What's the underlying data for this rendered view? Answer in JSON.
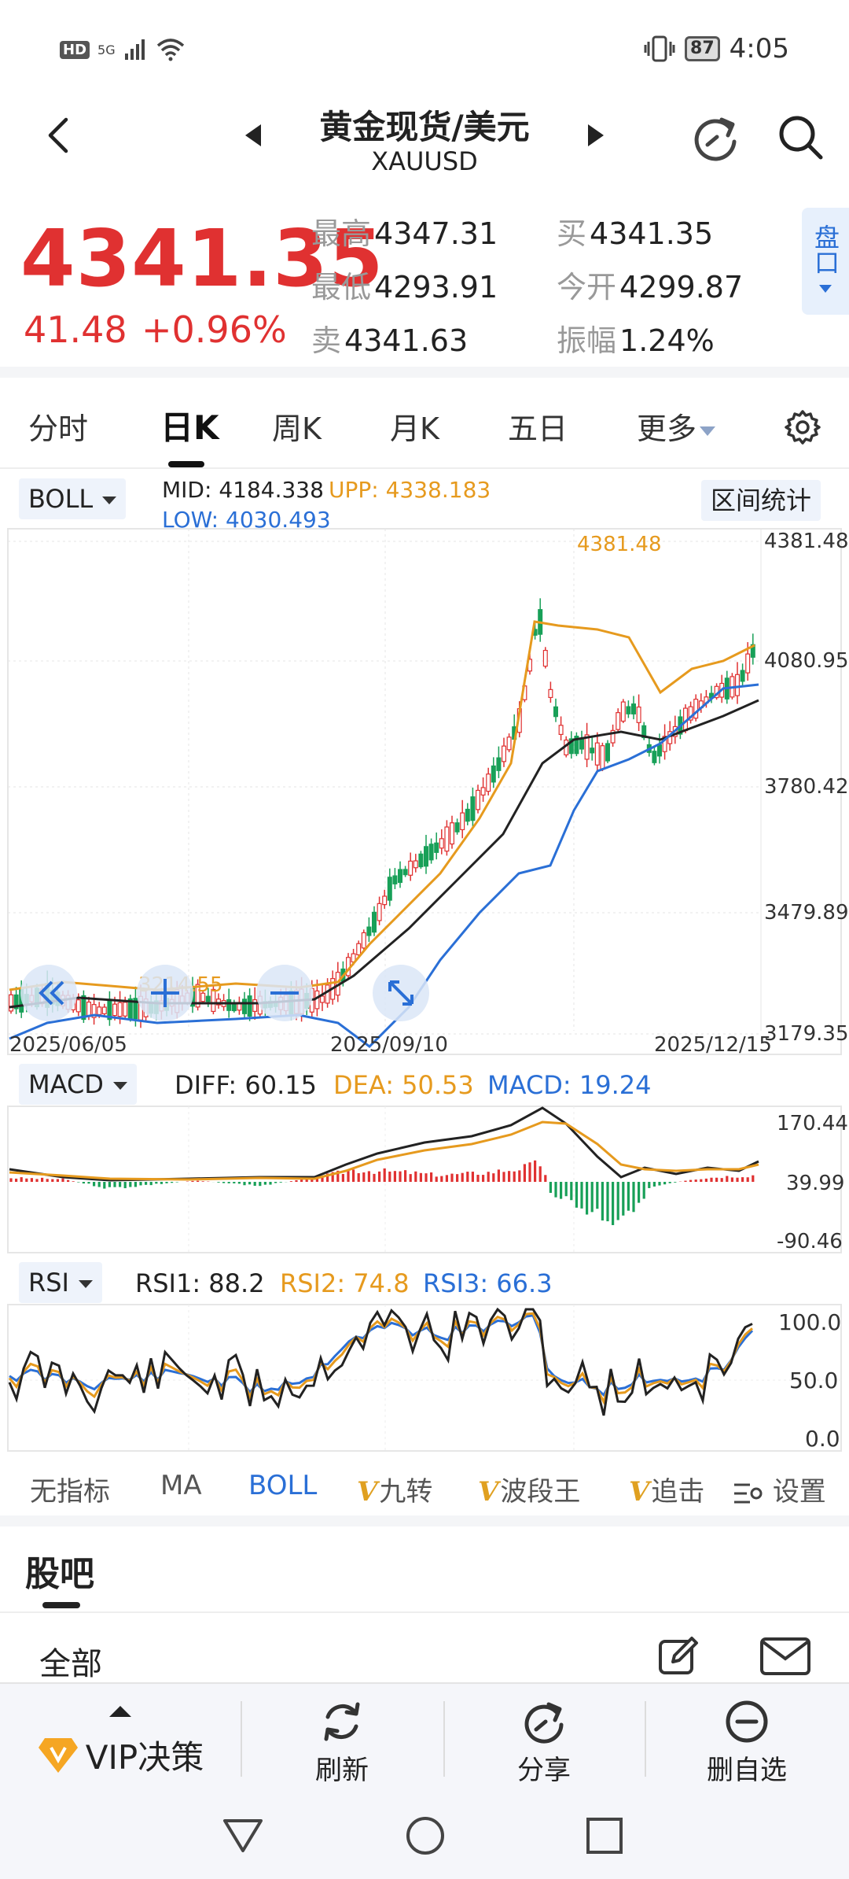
{
  "status_bar": {
    "hd": "HD",
    "signal": "5G",
    "battery": "87",
    "time": "4:05"
  },
  "header": {
    "title": "黄金现货/美元",
    "symbol": "XAUUSD"
  },
  "quote": {
    "price": "4341.35",
    "change": "41.48",
    "change_pct": "+0.96%",
    "high_label": "最高",
    "high": "4347.31",
    "low_label": "最低",
    "low": "4293.91",
    "ask_label": "卖",
    "ask": "4341.63",
    "bid_label": "买",
    "bid": "4341.35",
    "open_label": "今开",
    "open": "4299.87",
    "amp_label": "振幅",
    "amp": "1.24%",
    "pankou": "盘口"
  },
  "tabs": [
    {
      "label": "分时"
    },
    {
      "label": "日K"
    },
    {
      "label": "周K"
    },
    {
      "label": "月K"
    },
    {
      "label": "五日"
    },
    {
      "label": "更多"
    }
  ],
  "boll": {
    "selector": "BOLL",
    "mid": "MID:",
    "mid_val": "4184.338",
    "upp": "UPP:",
    "upp_val": "4338.183",
    "low": "LOW:",
    "low_val": "4030.493",
    "range_btn": "区间统计",
    "y_ticks": [
      "4381.48",
      "4080.95",
      "3780.42",
      "3479.89",
      "3179.35"
    ],
    "x_ticks": [
      "2025/06/05",
      "2025/09/10",
      "2025/12/15"
    ],
    "high_marker": "4381.48",
    "low_marker": "3214.55"
  },
  "macd": {
    "selector": "MACD",
    "diff": "DIFF: 60.15",
    "dea": "DEA: 50.53",
    "macd": "MACD: 19.24",
    "y_ticks": [
      "170.44",
      "39.99",
      "-90.46"
    ]
  },
  "rsi": {
    "selector": "RSI",
    "rsi1": "RSI1: 88.2",
    "rsi2": "RSI2: 74.8",
    "rsi3": "RSI3: 66.3",
    "y_ticks": [
      "100.0",
      "50.0",
      "0.0"
    ]
  },
  "indicator_tabs": {
    "none": "无指标",
    "ma": "MA",
    "boll": "BOLL",
    "jiuzhuan": "九转",
    "boduan": "波段王",
    "zhuiji": "追击",
    "settings": "设置"
  },
  "guba": {
    "title": "股吧",
    "all": "全部"
  },
  "bottom_bar": {
    "vip": "VIP决策",
    "refresh": "刷新",
    "share": "分享",
    "remove": "删自选"
  },
  "colors": {
    "up": "#e03131",
    "down": "#18a058",
    "mid": "#222222",
    "upper": "#e69a1e",
    "lower": "#2a6fd6"
  }
}
